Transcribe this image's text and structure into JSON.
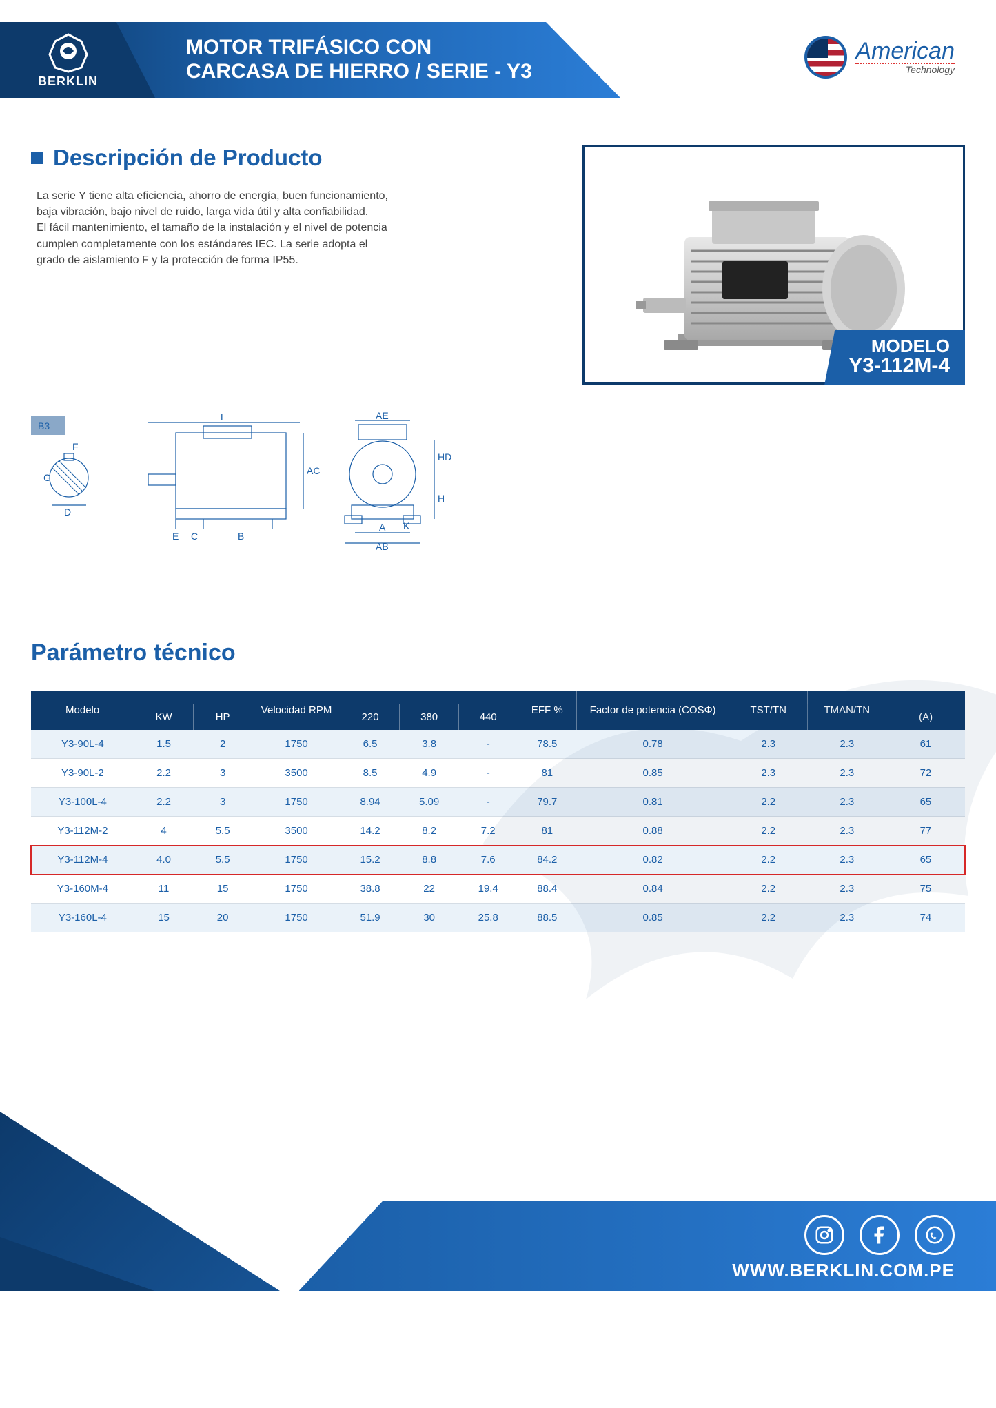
{
  "header": {
    "brand": "BERKLIN",
    "title_line1": "MOTOR TRIFÁSICO CON",
    "title_line2": "CARCASA DE HIERRO / SERIE - Y3",
    "amtech_line1": "American",
    "amtech_line2": "Technology"
  },
  "description": {
    "heading": "Descripción de Producto",
    "text": "La serie Y tiene alta eficiencia, ahorro de energía, buen funcionamiento, baja vibración, bajo nivel de ruido, larga vida útil y alta confiabilidad.\nEl fácil mantenimiento, el tamaño de la instalación y el nivel de potencia cumplen completamente con los estándares IEC. La serie adopta el grado de aislamiento F y la protección de forma IP55."
  },
  "model_tag": {
    "label": "MODELO",
    "value": "Y3-112M-4"
  },
  "diagram": {
    "badge": "B3",
    "labels": [
      "F",
      "G",
      "D",
      "L",
      "AC",
      "E",
      "C",
      "B",
      "AE",
      "H",
      "HD",
      "K",
      "A",
      "AB"
    ]
  },
  "tech": {
    "heading": "Parámetro técnico",
    "header_bg": "#0d3a6b",
    "row_odd_bg": "#eaf2f9",
    "row_even_bg": "#ffffff",
    "highlight_border": "#d62828",
    "text_color": "#1b5fa8",
    "columns_row1": [
      "Modelo",
      "",
      "",
      "Velocidad RPM",
      "",
      "",
      "",
      "EFF %",
      "Factor de potencia (COSΦ)",
      "TST/TN",
      "TMAN/TN",
      ""
    ],
    "columns_row2": [
      "",
      "KW",
      "HP",
      "",
      "220",
      "380",
      "440",
      "",
      "",
      "",
      "",
      "(A)"
    ],
    "col_widths_pct": [
      10.5,
      6,
      6,
      9,
      6,
      6,
      6,
      6,
      15.5,
      8,
      8,
      8
    ],
    "highlight_index": 4,
    "rows": [
      [
        "Y3-90L-4",
        "1.5",
        "2",
        "1750",
        "6.5",
        "3.8",
        "-",
        "78.5",
        "0.78",
        "2.3",
        "2.3",
        "61"
      ],
      [
        "Y3-90L-2",
        "2.2",
        "3",
        "3500",
        "8.5",
        "4.9",
        "-",
        "81",
        "0.85",
        "2.3",
        "2.3",
        "72"
      ],
      [
        "Y3-100L-4",
        "2.2",
        "3",
        "1750",
        "8.94",
        "5.09",
        "-",
        "79.7",
        "0.81",
        "2.2",
        "2.3",
        "65"
      ],
      [
        "Y3-112M-2",
        "4",
        "5.5",
        "3500",
        "14.2",
        "8.2",
        "7.2",
        "81",
        "0.88",
        "2.2",
        "2.3",
        "77"
      ],
      [
        "Y3-112M-4",
        "4.0",
        "5.5",
        "1750",
        "15.2",
        "8.8",
        "7.6",
        "84.2",
        "0.82",
        "2.2",
        "2.3",
        "65"
      ],
      [
        "Y3-160M-4",
        "11",
        "15",
        "1750",
        "38.8",
        "22",
        "19.4",
        "88.4",
        "0.84",
        "2.2",
        "2.3",
        "75"
      ],
      [
        "Y3-160L-4",
        "15",
        "20",
        "1750",
        "51.9",
        "30",
        "25.8",
        "88.5",
        "0.85",
        "2.2",
        "2.3",
        "74"
      ]
    ]
  },
  "footer": {
    "url": "WWW.BERKLIN.COM.PE",
    "social_icons": [
      "instagram-icon",
      "facebook-icon",
      "whatsapp-icon"
    ]
  },
  "colors": {
    "primary": "#1b5fa8",
    "primary_dark": "#0d3a6b",
    "primary_light": "#2b7dd6",
    "highlight_red": "#d62828"
  }
}
